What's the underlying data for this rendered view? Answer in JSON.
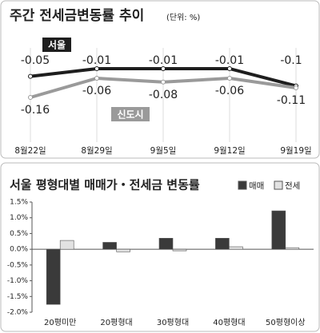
{
  "chart_data": [
    {
      "type": "line",
      "title": "주간 전세금변동률 추이",
      "subtitle": "(단위: %)",
      "categories": [
        "8월22일",
        "8월29일",
        "9월5일",
        "9월12일",
        "9월19일"
      ],
      "series": [
        {
          "name": "서울",
          "color": "#1e1e1e",
          "values": [
            -0.05,
            -0.01,
            -0.01,
            -0.01,
            -0.1
          ]
        },
        {
          "name": "신도시",
          "color": "#9a9a9a",
          "values": [
            -0.16,
            -0.06,
            -0.08,
            -0.06,
            -0.11
          ]
        }
      ]
    },
    {
      "type": "bar",
      "title": "서울 평형대별 매매가・전세금 변동률",
      "categories": [
        "20평미만",
        "20평형대",
        "30평형대",
        "40평형대",
        "50평형이상"
      ],
      "series": [
        {
          "name": "매매",
          "color": "#3a3a3a",
          "values": [
            -1.75,
            0.22,
            0.35,
            0.35,
            1.22
          ]
        },
        {
          "name": "전세",
          "color": "#e2e2e2",
          "values": [
            0.28,
            -0.08,
            -0.05,
            0.08,
            0.05
          ]
        }
      ],
      "ylim": [
        -2.0,
        1.5
      ],
      "yticks": [
        {
          "value": 1.5,
          "label": "1.5%"
        },
        {
          "value": 1.0,
          "label": "1.0%"
        },
        {
          "value": 0.5,
          "label": "0.5%"
        },
        {
          "value": 0,
          "label": "0.0%"
        },
        {
          "value": -0.5,
          "label": "-0.5%"
        },
        {
          "value": -1.0,
          "label": "-1.0%"
        },
        {
          "value": -1.5,
          "label": "-1.5%"
        },
        {
          "value": -2.0,
          "label": "-2.0%"
        }
      ]
    }
  ]
}
